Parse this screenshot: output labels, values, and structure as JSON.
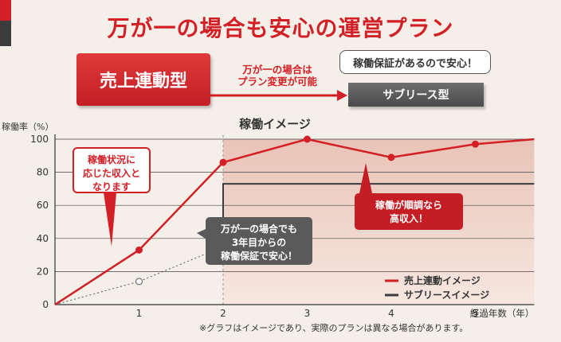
{
  "header": {
    "title": "万が一の場合も安心の運営プラン",
    "box_left": "売上連動型",
    "arrow_label_1": "万が一の場合は",
    "arrow_label_2": "プラン変更が可能",
    "bubble_top": "稼働保証があるので安心！",
    "box_right": "サブリース型"
  },
  "chart_data": {
    "type": "line",
    "title": "稼働イメージ",
    "ylabel": "稼働率（%）",
    "xlabel": "経過年数（年）",
    "x": [
      0,
      1,
      2,
      3,
      4,
      5,
      5.7
    ],
    "ylim": [
      0,
      100
    ],
    "yticks": [
      "0",
      "20",
      "40",
      "60",
      "80",
      "100"
    ],
    "xticks": [
      "1",
      "2",
      "3",
      "4",
      "5"
    ],
    "grid": true,
    "legend_position": "bottom-right",
    "series": [
      {
        "name": "売上連動イメージ",
        "color": "#d32027",
        "points": [
          [
            0,
            0
          ],
          [
            1,
            33
          ],
          [
            2,
            86
          ],
          [
            3,
            100
          ],
          [
            4,
            89
          ],
          [
            5,
            97
          ],
          [
            5.7,
            100
          ]
        ]
      },
      {
        "name": "サブリースイメージ",
        "color": "#3c3c3c",
        "points": [
          [
            2,
            73
          ],
          [
            5.7,
            73
          ]
        ]
      },
      {
        "name": "",
        "color": "#555555",
        "dashed": true,
        "points": [
          [
            0,
            0
          ],
          [
            1,
            14
          ],
          [
            2,
            35
          ]
        ]
      }
    ],
    "annotations": {
      "red_callout": [
        "稼働状況に",
        "応じた収入と",
        "なります"
      ],
      "gray_callout": [
        "万が一の場合でも",
        "3年目からの",
        "稼働保証で安心！"
      ],
      "good_callout": [
        "稼働が順調なら",
        "高収入！"
      ]
    },
    "footnote": "※グラフはイメージであり、実際のプランは異なる場合があります。"
  }
}
